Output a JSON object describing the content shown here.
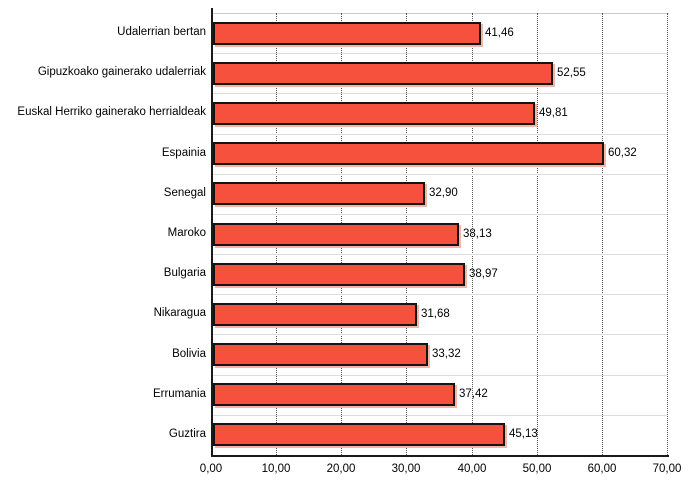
{
  "chart_data": {
    "type": "bar",
    "orientation": "horizontal",
    "title": "",
    "categories": [
      "Udalerrian bertan",
      "Gipuzkoako gainerako udalerriak",
      "Euskal Herriko gainerako herrialdeak",
      "Espainia",
      "Senegal",
      "Maroko",
      "Bulgaria",
      "Nikaragua",
      "Bolivia",
      "Errumania",
      "Guztira"
    ],
    "values": [
      41.46,
      52.55,
      49.81,
      60.32,
      32.9,
      38.13,
      38.97,
      31.68,
      33.32,
      37.42,
      45.13
    ],
    "value_labels": [
      "41,46",
      "52,55",
      "49,81",
      "60,32",
      "32,90",
      "38,13",
      "38,97",
      "31,68",
      "33,32",
      "37,42",
      "45,13"
    ],
    "xlabel": "",
    "ylabel": "",
    "xlim": [
      0,
      70
    ],
    "x_tick_values": [
      0,
      10,
      20,
      30,
      40,
      50,
      60,
      70
    ],
    "x_tick_labels": [
      "0,00",
      "10,00",
      "20,00",
      "30,00",
      "40,00",
      "50,00",
      "60,00",
      "70,00"
    ],
    "grid": "vertical-dotted-and-horizontal-light",
    "legend": "none",
    "colors": {
      "bar_fill": "#F5513C",
      "bar_border": "#141414",
      "bar_shadow": "#F5B5A3",
      "gridline_dotted": "#555555",
      "gridline_light": "#DDDDDD",
      "axis": "#1A1A1A",
      "text": "#000000",
      "background": "#FFFFFF"
    }
  }
}
